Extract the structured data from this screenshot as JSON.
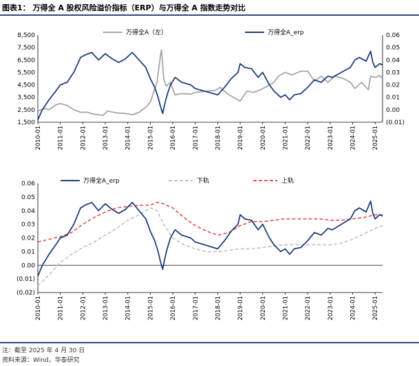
{
  "figure": {
    "title": "图表1： 万得全 A 股权风险溢价指标（ERP）与万得全 A 指数走势对比",
    "footnote": "注：截至 2025 年 4 月 30 日",
    "source": "资料来源：Wind，华泰研究"
  },
  "colors": {
    "erp": "#1f3d7a",
    "index": "#a6a6a6",
    "lower": "#bfbfbf",
    "upper": "#e05050",
    "frame": "#2e4a7d"
  },
  "chart_data": [
    {
      "type": "line",
      "title": "",
      "legend": [
        "万得全A（左）",
        "万得全A_erp"
      ],
      "x_ticks": [
        "2010-01",
        "2011-01",
        "2012-01",
        "2013-01",
        "2014-01",
        "2015-01",
        "2016-01",
        "2017-01",
        "2018-01",
        "2019-01",
        "2020-01",
        "2021-01",
        "2022-01",
        "2023-01",
        "2024-01",
        "2025-01"
      ],
      "y_left": {
        "min": 1500,
        "max": 8500,
        "ticks": [
          "1,500",
          "2,500",
          "3,500",
          "4,500",
          "5,500",
          "6,500",
          "7,500",
          "8,500"
        ]
      },
      "y_right": {
        "min": -0.01,
        "max": 0.06,
        "ticks": [
          "(0.01)",
          "0.00",
          "0.01",
          "0.02",
          "0.03",
          "0.04",
          "0.05",
          "0.06"
        ]
      },
      "series": [
        {
          "name": "万得全A（左）",
          "axis": "left",
          "x": [
            2010.0,
            2010.3,
            2010.5,
            2010.8,
            2011.0,
            2011.3,
            2011.6,
            2011.9,
            2012.2,
            2012.5,
            2012.9,
            2013.1,
            2013.5,
            2013.9,
            2014.2,
            2014.5,
            2014.8,
            2015.0,
            2015.3,
            2015.45,
            2015.5,
            2015.6,
            2015.7,
            2015.9,
            2016.1,
            2016.4,
            2016.8,
            2017.0,
            2017.5,
            2017.9,
            2018.1,
            2018.5,
            2018.9,
            2019.0,
            2019.3,
            2019.6,
            2019.9,
            2020.2,
            2020.5,
            2020.7,
            2021.0,
            2021.3,
            2021.7,
            2022.0,
            2022.3,
            2022.6,
            2022.9,
            2023.2,
            2023.6,
            2023.9,
            2024.1,
            2024.4,
            2024.7,
            2024.8,
            2025.0,
            2025.2,
            2025.33
          ],
          "values": [
            2400,
            2600,
            2500,
            2900,
            3000,
            2850,
            2500,
            2300,
            2300,
            2150,
            2050,
            2400,
            2250,
            2200,
            2100,
            2300,
            2700,
            3100,
            4700,
            6800,
            7300,
            5000,
            4400,
            4700,
            3700,
            3800,
            3750,
            3900,
            4000,
            4050,
            4300,
            3700,
            3300,
            3200,
            4000,
            3900,
            4100,
            4400,
            4700,
            5200,
            5500,
            5300,
            5600,
            5600,
            4800,
            5200,
            4700,
            5200,
            5000,
            4700,
            4200,
            4700,
            4100,
            5200,
            5100,
            5250,
            5000
          ]
        },
        {
          "name": "万得全A_erp",
          "axis": "right",
          "x": [
            2010.0,
            2010.2,
            2010.5,
            2010.8,
            2011.0,
            2011.3,
            2011.6,
            2011.9,
            2012.1,
            2012.4,
            2012.7,
            2013.0,
            2013.3,
            2013.6,
            2013.9,
            2014.2,
            2014.5,
            2014.8,
            2015.0,
            2015.2,
            2015.35,
            2015.45,
            2015.55,
            2015.65,
            2015.75,
            2015.9,
            2016.1,
            2016.4,
            2016.8,
            2017.0,
            2017.4,
            2017.8,
            2018.0,
            2018.3,
            2018.6,
            2018.9,
            2019.0,
            2019.2,
            2019.5,
            2019.8,
            2020.0,
            2020.3,
            2020.5,
            2020.8,
            2021.0,
            2021.2,
            2021.4,
            2021.7,
            2022.0,
            2022.3,
            2022.6,
            2022.9,
            2023.1,
            2023.5,
            2023.9,
            2024.1,
            2024.3,
            2024.6,
            2024.8,
            2024.9,
            2025.0,
            2025.2,
            2025.33
          ],
          "values": [
            -0.008,
            0.0,
            0.008,
            0.015,
            0.02,
            0.022,
            0.03,
            0.042,
            0.044,
            0.046,
            0.04,
            0.045,
            0.041,
            0.038,
            0.041,
            0.046,
            0.04,
            0.034,
            0.025,
            0.018,
            0.01,
            0.003,
            -0.003,
            0.005,
            0.012,
            0.02,
            0.026,
            0.022,
            0.02,
            0.017,
            0.015,
            0.013,
            0.012,
            0.018,
            0.025,
            0.03,
            0.037,
            0.034,
            0.033,
            0.026,
            0.03,
            0.02,
            0.015,
            0.01,
            0.012,
            0.008,
            0.012,
            0.013,
            0.018,
            0.024,
            0.022,
            0.027,
            0.026,
            0.03,
            0.034,
            0.04,
            0.042,
            0.039,
            0.047,
            0.038,
            0.034,
            0.037,
            0.036
          ]
        }
      ]
    },
    {
      "type": "line",
      "title": "",
      "legend": [
        "万得全A_erp",
        "下轨",
        "上轨"
      ],
      "x_ticks": [
        "2010-01",
        "2011-01",
        "2012-01",
        "2013-01",
        "2014-01",
        "2015-01",
        "2016-01",
        "2017-01",
        "2018-01",
        "2019-01",
        "2020-01",
        "2021-01",
        "2022-01",
        "2023-01",
        "2024-01",
        "2025-01"
      ],
      "y": {
        "min": -0.02,
        "max": 0.06,
        "ticks": [
          "(0.02)",
          "(0.01)",
          "0.00",
          "0.01",
          "0.02",
          "0.03",
          "0.04",
          "0.05",
          "0.06"
        ]
      },
      "series": [
        {
          "name": "万得全A_erp",
          "style": "solid",
          "x": [
            2010.0,
            2010.2,
            2010.5,
            2010.8,
            2011.0,
            2011.3,
            2011.6,
            2011.9,
            2012.1,
            2012.4,
            2012.7,
            2013.0,
            2013.3,
            2013.6,
            2013.9,
            2014.2,
            2014.5,
            2014.8,
            2015.0,
            2015.2,
            2015.35,
            2015.45,
            2015.55,
            2015.65,
            2015.75,
            2015.9,
            2016.1,
            2016.4,
            2016.8,
            2017.0,
            2017.4,
            2017.8,
            2018.0,
            2018.3,
            2018.6,
            2018.9,
            2019.0,
            2019.2,
            2019.5,
            2019.8,
            2020.0,
            2020.3,
            2020.5,
            2020.8,
            2021.0,
            2021.2,
            2021.4,
            2021.7,
            2022.0,
            2022.3,
            2022.6,
            2022.9,
            2023.1,
            2023.5,
            2023.9,
            2024.1,
            2024.3,
            2024.6,
            2024.8,
            2024.9,
            2025.0,
            2025.2,
            2025.33
          ],
          "values": [
            -0.008,
            0.0,
            0.008,
            0.015,
            0.02,
            0.022,
            0.03,
            0.042,
            0.044,
            0.046,
            0.04,
            0.045,
            0.041,
            0.038,
            0.041,
            0.046,
            0.04,
            0.034,
            0.025,
            0.018,
            0.01,
            0.003,
            -0.003,
            0.005,
            0.012,
            0.02,
            0.026,
            0.022,
            0.02,
            0.017,
            0.015,
            0.013,
            0.012,
            0.018,
            0.025,
            0.03,
            0.037,
            0.034,
            0.033,
            0.026,
            0.03,
            0.02,
            0.015,
            0.01,
            0.012,
            0.008,
            0.012,
            0.013,
            0.018,
            0.024,
            0.022,
            0.027,
            0.026,
            0.03,
            0.034,
            0.04,
            0.042,
            0.039,
            0.047,
            0.038,
            0.034,
            0.037,
            0.036
          ]
        },
        {
          "name": "下轨",
          "style": "dashed",
          "x": [
            2010.0,
            2010.5,
            2011.0,
            2011.5,
            2012.0,
            2012.5,
            2013.0,
            2013.5,
            2014.0,
            2014.5,
            2015.0,
            2015.3,
            2015.6,
            2016.0,
            2016.5,
            2017.0,
            2017.5,
            2018.0,
            2018.5,
            2019.0,
            2019.5,
            2020.0,
            2020.5,
            2021.0,
            2021.5,
            2022.0,
            2022.5,
            2023.0,
            2023.5,
            2024.0,
            2024.5,
            2025.0,
            2025.33
          ],
          "values": [
            -0.015,
            -0.007,
            0.002,
            0.008,
            0.013,
            0.017,
            0.022,
            0.027,
            0.033,
            0.037,
            0.042,
            0.04,
            0.03,
            0.02,
            0.015,
            0.012,
            0.01,
            0.01,
            0.011,
            0.012,
            0.012,
            0.013,
            0.014,
            0.015,
            0.015,
            0.015,
            0.015,
            0.015,
            0.016,
            0.019,
            0.023,
            0.027,
            0.029
          ]
        },
        {
          "name": "上轨",
          "style": "dashed",
          "x": [
            2010.0,
            2010.5,
            2011.0,
            2011.5,
            2012.0,
            2012.5,
            2013.0,
            2013.5,
            2014.0,
            2014.5,
            2015.0,
            2015.3,
            2015.6,
            2016.0,
            2016.5,
            2017.0,
            2017.5,
            2018.0,
            2018.5,
            2019.0,
            2019.5,
            2020.0,
            2020.5,
            2021.0,
            2021.5,
            2022.0,
            2022.5,
            2023.0,
            2023.5,
            2024.0,
            2024.5,
            2025.0,
            2025.33
          ],
          "values": [
            0.017,
            0.019,
            0.021,
            0.024,
            0.03,
            0.035,
            0.039,
            0.042,
            0.043,
            0.044,
            0.044,
            0.046,
            0.045,
            0.042,
            0.035,
            0.029,
            0.025,
            0.022,
            0.024,
            0.029,
            0.032,
            0.032,
            0.033,
            0.034,
            0.034,
            0.034,
            0.034,
            0.033,
            0.033,
            0.034,
            0.035,
            0.037,
            0.037
          ]
        }
      ]
    }
  ]
}
